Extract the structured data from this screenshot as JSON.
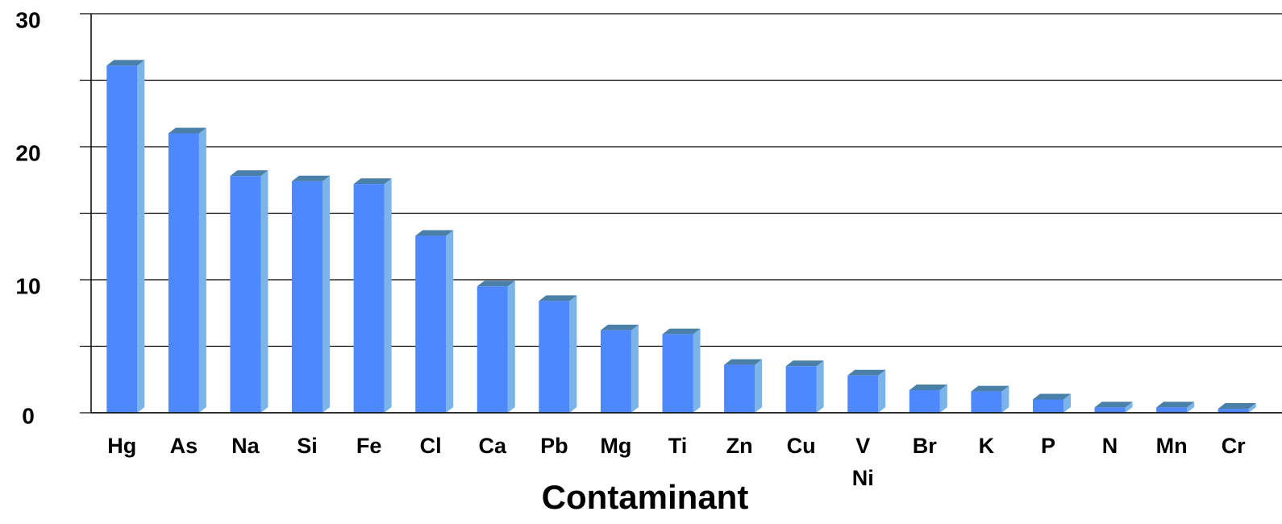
{
  "chart_data": {
    "type": "bar",
    "x_label": "Contaminant",
    "categories": [
      "Hg",
      "As",
      "Na",
      "Si",
      "Fe",
      "Cl",
      "Ca",
      "Pb",
      "Mg",
      "Ti",
      "Zn",
      "Cu",
      "V\nNi",
      "Br",
      "K",
      "P",
      "N",
      "Mn",
      "Cr"
    ],
    "values": [
      26.1,
      21.0,
      17.8,
      17.4,
      17.2,
      13.3,
      9.5,
      8.4,
      6.2,
      5.9,
      3.6,
      3.5,
      2.8,
      1.7,
      1.6,
      1.0,
      0.4,
      0.4,
      0.3
    ],
    "color": "#4d88ff",
    "ylim": [
      0,
      30
    ],
    "yticks": [
      0,
      10,
      20,
      30
    ],
    "minor_yticks": [
      5,
      15,
      25
    ],
    "grid": true
  }
}
